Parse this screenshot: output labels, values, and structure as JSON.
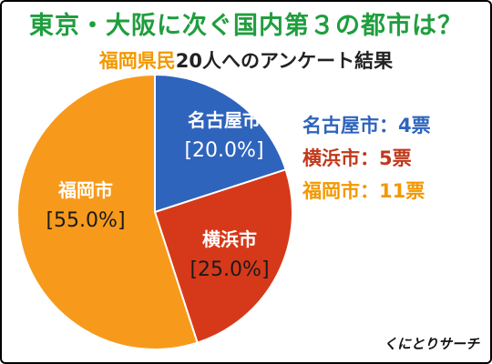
{
  "title": "東京・大阪に次ぐ国内第３の都市は？",
  "subtitle": {
    "highlight": "福岡県民",
    "rest": "20人へのアンケート結果"
  },
  "chart_data": {
    "type": "pie",
    "slices": [
      {
        "label": "名古屋市",
        "value": 20.0,
        "percent_label": "[20.0%]",
        "votes_label": "名古屋市：4票",
        "color": "#2f64bd"
      },
      {
        "label": "横浜市",
        "value": 25.0,
        "percent_label": "[25.0%]",
        "votes_label": "横浜市：5票",
        "color": "#d6391a"
      },
      {
        "label": "福岡市",
        "value": 55.0,
        "percent_label": "[55.0%]",
        "votes_label": "福岡市：11票",
        "color": "#f79a1b"
      }
    ],
    "start_angle": "12 o'clock",
    "direction": "clockwise",
    "legend_position": "right"
  },
  "colors": {
    "title": "#1f9e3e",
    "subtitle_highlight": "#f39800",
    "legend_text": [
      "#2f64bd",
      "#c0391b",
      "#f39800"
    ]
  },
  "watermark": "くにとりサーチ"
}
